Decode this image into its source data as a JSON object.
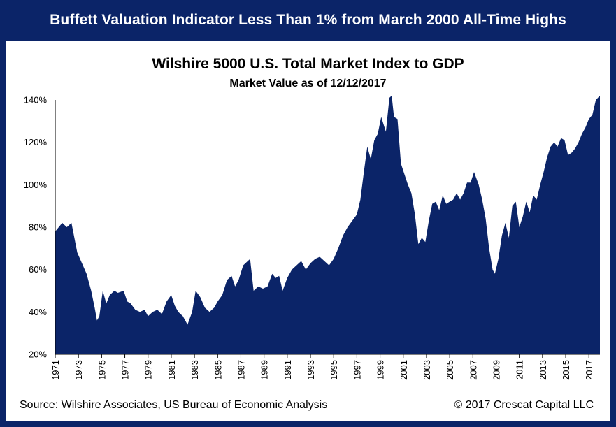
{
  "banner": "Buffett Valuation Indicator Less Than 1% from March 2000 All-Time Highs",
  "footer": {
    "source": "Source: Wilshire Associates, US Bureau of Economic Analysis",
    "copyright": "© 2017 Crescat Capital LLC"
  },
  "colors": {
    "frame": "#0b2468",
    "fill": "#0b2468",
    "background": "#ffffff"
  },
  "chart_data": {
    "type": "area",
    "title": "Wilshire 5000 U.S. Total Market Index to GDP",
    "subtitle": "Market Value as of 12/12/2017",
    "xlabel": "",
    "ylabel": "",
    "ylim": [
      20,
      140
    ],
    "xlim": [
      1971,
      2017.95
    ],
    "grid": false,
    "yticks": [
      20,
      40,
      60,
      80,
      100,
      120,
      140
    ],
    "ytick_labels": [
      "20%",
      "40%",
      "60%",
      "80%",
      "100%",
      "120%",
      "140%"
    ],
    "xtick_labels": [
      "1971",
      "1973",
      "1975",
      "1977",
      "1979",
      "1981",
      "1983",
      "1985",
      "1987",
      "1989",
      "1991",
      "1993",
      "1995",
      "1997",
      "1999",
      "2001",
      "2003",
      "2005",
      "2007",
      "2009",
      "2011",
      "2013",
      "2015",
      "2017"
    ],
    "series": [
      {
        "x": [
          1971.0,
          1971.3,
          1971.6,
          1972.0,
          1972.4,
          1972.9,
          1973.3,
          1973.7,
          1974.1,
          1974.4,
          1974.6,
          1974.8,
          1975.1,
          1975.4,
          1975.7,
          1976.1,
          1976.4,
          1976.9,
          1977.2,
          1977.5,
          1977.9,
          1978.3,
          1978.7,
          1979.0,
          1979.4,
          1979.8,
          1980.2,
          1980.6,
          1981.0,
          1981.3,
          1981.6,
          1982.0,
          1982.4,
          1982.8,
          1983.1,
          1983.5,
          1983.9,
          1984.3,
          1984.7,
          1985.0,
          1985.4,
          1985.8,
          1986.2,
          1986.5,
          1986.8,
          1987.2,
          1987.6,
          1987.8,
          1988.1,
          1988.5,
          1988.9,
          1989.3,
          1989.7,
          1990.0,
          1990.3,
          1990.6,
          1991.0,
          1991.4,
          1991.8,
          1992.2,
          1992.6,
          1993.0,
          1993.4,
          1993.8,
          1994.2,
          1994.6,
          1995.0,
          1995.4,
          1995.8,
          1996.2,
          1996.6,
          1997.0,
          1997.3,
          1997.6,
          1997.9,
          1998.2,
          1998.5,
          1998.8,
          1999.1,
          1999.5,
          1999.8,
          2000.0,
          2000.2,
          2000.5,
          2000.8,
          2001.1,
          2001.4,
          2001.7,
          2002.0,
          2002.3,
          2002.6,
          2002.9,
          2003.2,
          2003.5,
          2003.8,
          2004.1,
          2004.4,
          2004.7,
          2005.0,
          2005.3,
          2005.6,
          2005.9,
          2006.2,
          2006.5,
          2006.8,
          2007.1,
          2007.5,
          2007.8,
          2008.1,
          2008.4,
          2008.7,
          2008.9,
          2009.2,
          2009.5,
          2009.8,
          2010.1,
          2010.4,
          2010.7,
          2011.0,
          2011.3,
          2011.6,
          2011.9,
          2012.2,
          2012.5,
          2012.8,
          2013.1,
          2013.4,
          2013.7,
          2014.0,
          2014.3,
          2014.6,
          2014.9,
          2015.2,
          2015.5,
          2015.8,
          2016.1,
          2016.4,
          2016.7,
          2017.0,
          2017.3,
          2017.6,
          2017.95
        ],
        "values": [
          78,
          80,
          82,
          80,
          82,
          68,
          63,
          58,
          50,
          42,
          36,
          38,
          50,
          44,
          48,
          50,
          49,
          50,
          45,
          44,
          41,
          40,
          41,
          38,
          40,
          41,
          39,
          45,
          48,
          43,
          40,
          38,
          34,
          40,
          50,
          47,
          42,
          40,
          42,
          45,
          48,
          55,
          57,
          52,
          55,
          62,
          64,
          65,
          50,
          52,
          51,
          52,
          58,
          56,
          57,
          50,
          56,
          60,
          62,
          64,
          60,
          63,
          65,
          66,
          64,
          62,
          65,
          70,
          76,
          80,
          83,
          86,
          93,
          106,
          118,
          112,
          121,
          124,
          132,
          125,
          141,
          142,
          132,
          131,
          110,
          105,
          100,
          96,
          86,
          72,
          75,
          73,
          83,
          91,
          92,
          88,
          95,
          91,
          92,
          93,
          96,
          93,
          96,
          101,
          101,
          106,
          100,
          93,
          84,
          70,
          60,
          58,
          65,
          76,
          82,
          75,
          90,
          92,
          80,
          85,
          92,
          87,
          95,
          93,
          100,
          106,
          113,
          118,
          120,
          118,
          122,
          121,
          114,
          115,
          117,
          120,
          124,
          127,
          131,
          133,
          140,
          142
        ]
      }
    ]
  }
}
